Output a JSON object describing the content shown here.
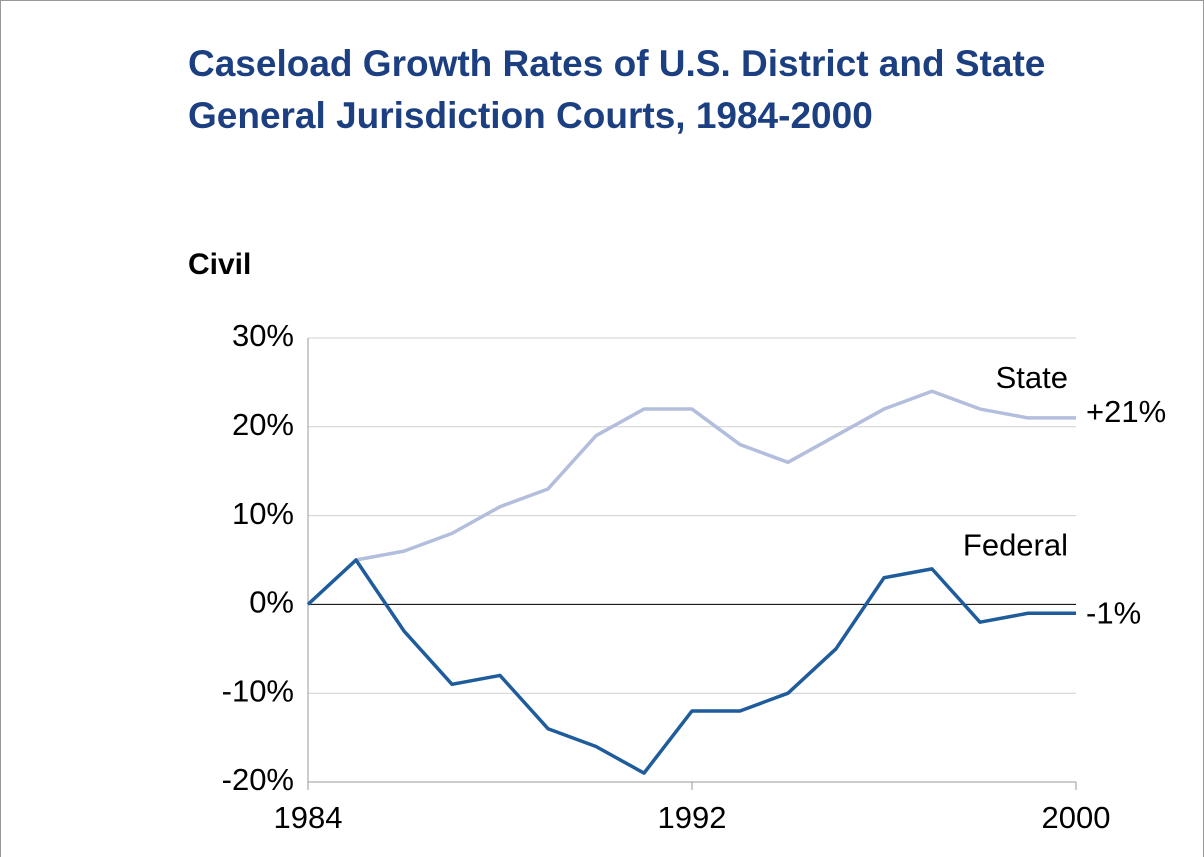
{
  "chart_data": {
    "type": "line",
    "title": "Caseload Growth Rates of U.S. District and State General Jurisdiction Courts, 1984-2000",
    "subtitle": "Civil",
    "x": [
      1984,
      1985,
      1986,
      1987,
      1988,
      1989,
      1990,
      1991,
      1992,
      1993,
      1994,
      1995,
      1996,
      1997,
      1998,
      1999,
      2000
    ],
    "xlim": [
      1984,
      2000
    ],
    "xticks": [
      1984,
      1992,
      2000
    ],
    "ylim": [
      -20,
      30
    ],
    "yticks": [
      {
        "value": -20,
        "label": "-20%"
      },
      {
        "value": -10,
        "label": "-10%"
      },
      {
        "value": 0,
        "label": "0%"
      },
      {
        "value": 10,
        "label": "10%"
      },
      {
        "value": 20,
        "label": "20%"
      },
      {
        "value": 30,
        "label": "30%"
      }
    ],
    "grid": true,
    "series": [
      {
        "name": "State",
        "color": "#b3bedc",
        "end_label": "+21%",
        "values": [
          0,
          5,
          6,
          8,
          11,
          13,
          19,
          22,
          22,
          18,
          16,
          19,
          22,
          24,
          22,
          21,
          21
        ]
      },
      {
        "name": "Federal",
        "color": "#1f5c9c",
        "end_label": "-1%",
        "values": [
          0,
          5,
          -3,
          -9,
          -8,
          -14,
          -16,
          -19,
          -12,
          -12,
          -10,
          -5,
          3,
          4,
          -2,
          -1,
          -1
        ]
      }
    ]
  }
}
